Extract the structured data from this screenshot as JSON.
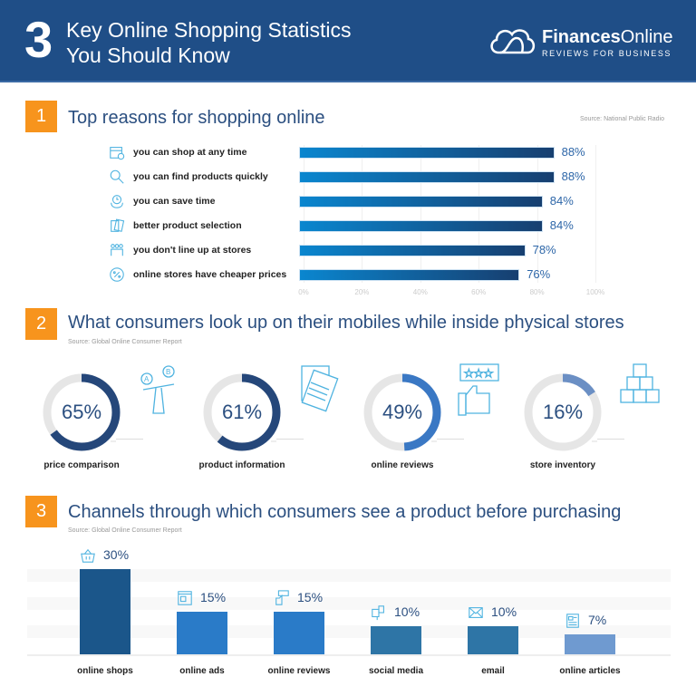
{
  "header": {
    "number": "3",
    "title_line1": "Key Online Shopping Statistics",
    "title_line2": "You Should Know"
  },
  "logo": {
    "name_bold": "Finances",
    "name_regular": "Online",
    "tagline": "REVIEWS FOR BUSINESS"
  },
  "chart_data": [
    {
      "type": "bar",
      "orientation": "horizontal",
      "badge": "1",
      "title": "Top reasons for shopping online",
      "source": "Source: National Public Radio",
      "categories": [
        "you can shop at any time",
        "you can find products quickly",
        "you can save time",
        "better product selection",
        "you don't line up at stores",
        "online stores have cheaper prices"
      ],
      "values": [
        88,
        88,
        84,
        84,
        78,
        76
      ],
      "value_labels": [
        "88%",
        "88%",
        "84%",
        "84%",
        "78%",
        "76%"
      ],
      "icons": [
        "calendar-clock-icon",
        "magnifier-icon",
        "time-saving-icon",
        "product-cards-icon",
        "queue-people-icon",
        "discount-badge-icon"
      ],
      "xlim": [
        0,
        100
      ],
      "ticks": [
        "0%",
        "20%",
        "40%",
        "60%",
        "80%",
        "100%"
      ],
      "grid": true,
      "bar_gradient": [
        "#0a86cf",
        "#173f70"
      ]
    },
    {
      "type": "pie",
      "style": "donut",
      "badge": "2",
      "title": "What consumers look up on their mobiles while inside physical stores",
      "source": "Source: Global Online Consumer Report",
      "categories": [
        "price comparison",
        "product information",
        "online reviews",
        "store inventory"
      ],
      "values": [
        65,
        61,
        49,
        16
      ],
      "value_labels": [
        "65%",
        "61%",
        "49%",
        "16%"
      ],
      "icons": [
        "scale-ab-icon",
        "documents-icon",
        "thumbs-up-rating-icon",
        "boxes-stack-icon"
      ],
      "colors": [
        "#25477a",
        "#25477a",
        "#3a78c4",
        "#6b8fc4"
      ],
      "track_color": "#e6e6e6"
    },
    {
      "type": "bar",
      "orientation": "vertical",
      "badge": "3",
      "title": "Channels through which consumers see a product before purchasing",
      "source": "Source: Global Online Consumer Report",
      "categories": [
        "online shops",
        "online ads",
        "online reviews",
        "social media",
        "email",
        "online articles"
      ],
      "values": [
        30,
        15,
        15,
        10,
        10,
        7
      ],
      "value_labels": [
        "30%",
        "15%",
        "15%",
        "10%",
        "10%",
        "7%"
      ],
      "icons": [
        "shopping-basket-icon",
        "web-ad-icon",
        "review-thumb-icon",
        "social-media-icon",
        "envelope-icon",
        "article-icon"
      ],
      "colors": [
        "#1b568a",
        "#2a7bc8",
        "#2a7bc8",
        "#2e75a6",
        "#2e75a6",
        "#6f9ad0"
      ]
    }
  ]
}
